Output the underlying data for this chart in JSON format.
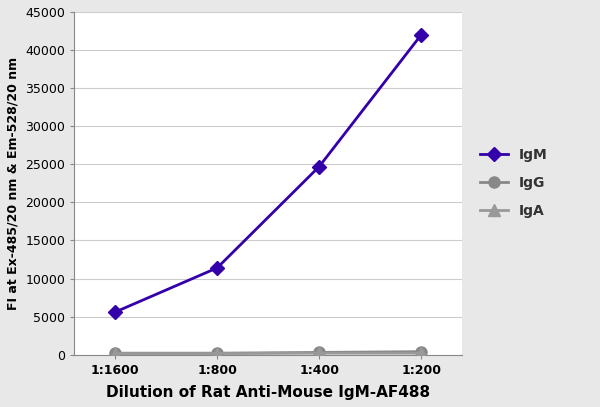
{
  "x_labels": [
    "1:1600",
    "1:800",
    "1:400",
    "1:200"
  ],
  "x_positions": [
    0,
    1,
    2,
    3
  ],
  "IgM_values": [
    5600,
    11400,
    24700,
    42000
  ],
  "IgG_values": [
    200,
    200,
    300,
    400
  ],
  "IgA_values": [
    150,
    150,
    200,
    200
  ],
  "IgM_color": "#3300aa",
  "IgG_color": "#888888",
  "IgA_color": "#999999",
  "xlabel": "Dilution of Rat Anti-Mouse IgM-AF488",
  "ylabel": "FI at Ex-485/20 nm & Em-528/20 nm",
  "ylim": [
    0,
    45000
  ],
  "yticks": [
    0,
    5000,
    10000,
    15000,
    20000,
    25000,
    30000,
    35000,
    40000,
    45000
  ],
  "legend_labels": [
    "IgM",
    "IgG",
    "IgA"
  ],
  "IgM_marker": "D",
  "IgG_marker": "o",
  "IgA_marker": "^",
  "marker_size_IgM": 7,
  "marker_size_IgG": 8,
  "marker_size_IgA": 8,
  "linewidth": 2.0,
  "background_color": "#e8e8e8",
  "plot_background": "#ffffff",
  "xlabel_fontsize": 11,
  "ylabel_fontsize": 9,
  "tick_fontsize": 9,
  "legend_fontsize": 10,
  "grid_color": "#cccccc"
}
